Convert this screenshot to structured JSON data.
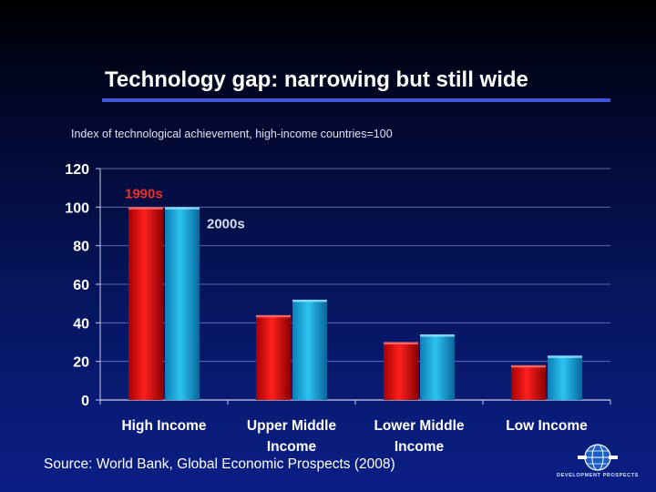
{
  "slide": {
    "title": "Technology gap: narrowing but still wide",
    "subtitle": "Index of technological achievement, high-income countries=100",
    "source": "Source: World Bank, Global Economic Prospects (2008)"
  },
  "logo": {
    "text": "DEVELOPMENT PROSPECTS",
    "icon": "globe-icon"
  },
  "colors": {
    "series_1990s": "#ee1111",
    "series_2000s": "#1fb0e4",
    "label_1990s": "#e8302a",
    "label_2000s": "#d8dcf0"
  },
  "chart_data": {
    "type": "bar",
    "categories": [
      "High Income",
      "Upper Middle Income",
      "Lower Middle Income",
      "Low Income"
    ],
    "category_lines": [
      [
        "High Income"
      ],
      [
        "Upper Middle",
        "Income"
      ],
      [
        "Lower Middle",
        "Income"
      ],
      [
        "Low Income"
      ]
    ],
    "series": [
      {
        "name": "1990s",
        "values": [
          100,
          44,
          30,
          18
        ]
      },
      {
        "name": "2000s",
        "values": [
          100,
          52,
          34,
          23
        ]
      }
    ],
    "ylim": [
      0,
      120
    ],
    "yticks": [
      0,
      20,
      40,
      60,
      80,
      100,
      120
    ],
    "grid": true,
    "series_labels": [
      "1990s",
      "2000s"
    ],
    "xlabel": "",
    "ylabel": "Index of technological achievement, high-income countries=100"
  }
}
